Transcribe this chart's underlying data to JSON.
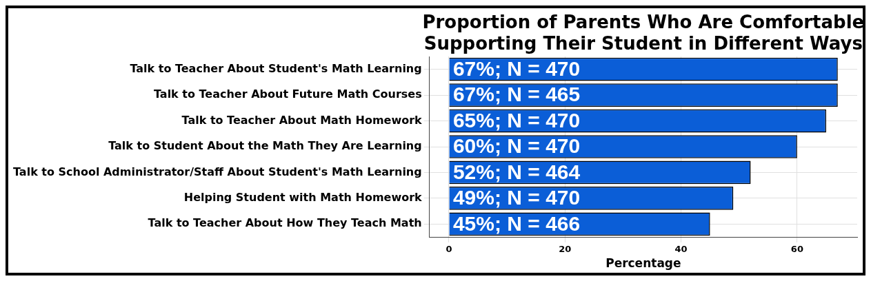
{
  "chart_data": {
    "type": "bar",
    "orientation": "horizontal",
    "title": "Proportion of Parents Who Are Comfortable\nSupporting Their Student in Different Ways",
    "xlabel": "Percentage",
    "categories": [
      "Talk to Teacher About Student's Math Learning",
      "Talk to Teacher About Future Math Courses",
      "Talk to Teacher About Math Homework",
      "Talk to Student About the Math They Are Learning",
      "Talk to School Administrator/Staff About Student's Math Learning",
      "Helping Student with Math Homework",
      "Talk to Teacher About How They Teach Math"
    ],
    "values": [
      67,
      67,
      65,
      60,
      52,
      49,
      45
    ],
    "value_labels": [
      "67%; N = 470",
      "67%; N = 465",
      "65%; N = 470",
      "60%; N = 470",
      "52%; N = 464",
      "49%; N = 470",
      "45%; N = 466"
    ],
    "color": "#0b5ed7",
    "xlim": [
      -3.35,
      70.35
    ],
    "xticks": [
      0,
      20,
      40,
      60
    ],
    "grid": true,
    "legend": false
  }
}
